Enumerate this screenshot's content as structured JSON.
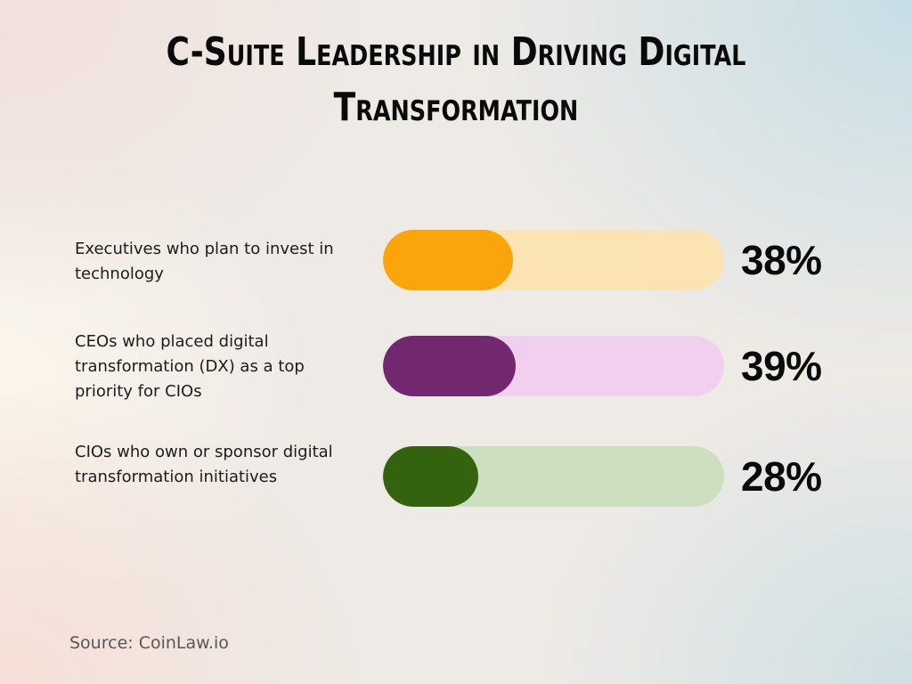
{
  "title": "C-Suite Leadership in Driving Digital Transformation",
  "source": "Source: CoinLaw.io",
  "rows": [
    {
      "label": "Executives who plan to invest in technology",
      "value": 38,
      "value_label": "38%",
      "fill_color": "#FBA50A",
      "track_color": "#FCE3B4"
    },
    {
      "label": "CEOs who placed digital transformation (DX) as a top priority for CIOs",
      "value": 39,
      "value_label": "39%",
      "fill_color": "#72286E",
      "track_color": "#F1D0EF"
    },
    {
      "label": "CIOs who own or sponsor digital transformation initiatives",
      "value": 28,
      "value_label": "28%",
      "fill_color": "#33630F",
      "track_color": "#CCE0C0"
    }
  ],
  "chart_data": {
    "type": "bar",
    "orientation": "horizontal",
    "title": "C-Suite Leadership in Driving Digital Transformation",
    "categories": [
      "Executives who plan to invest in technology",
      "CEOs who placed digital transformation (DX) as a top priority for CIOs",
      "CIOs who own or sponsor digital transformation initiatives"
    ],
    "values": [
      38,
      39,
      28
    ],
    "value_labels": [
      "38%",
      "39%",
      "28%"
    ],
    "unit": "%",
    "xlim": [
      0,
      100
    ],
    "colors": [
      "#FBA50A",
      "#72286E",
      "#33630F"
    ],
    "track_colors": [
      "#FCE3B4",
      "#F1D0EF",
      "#CCE0C0"
    ],
    "grid": false,
    "legend": null,
    "xlabel": "",
    "ylabel": "",
    "annotation": "Source: CoinLaw.io"
  }
}
